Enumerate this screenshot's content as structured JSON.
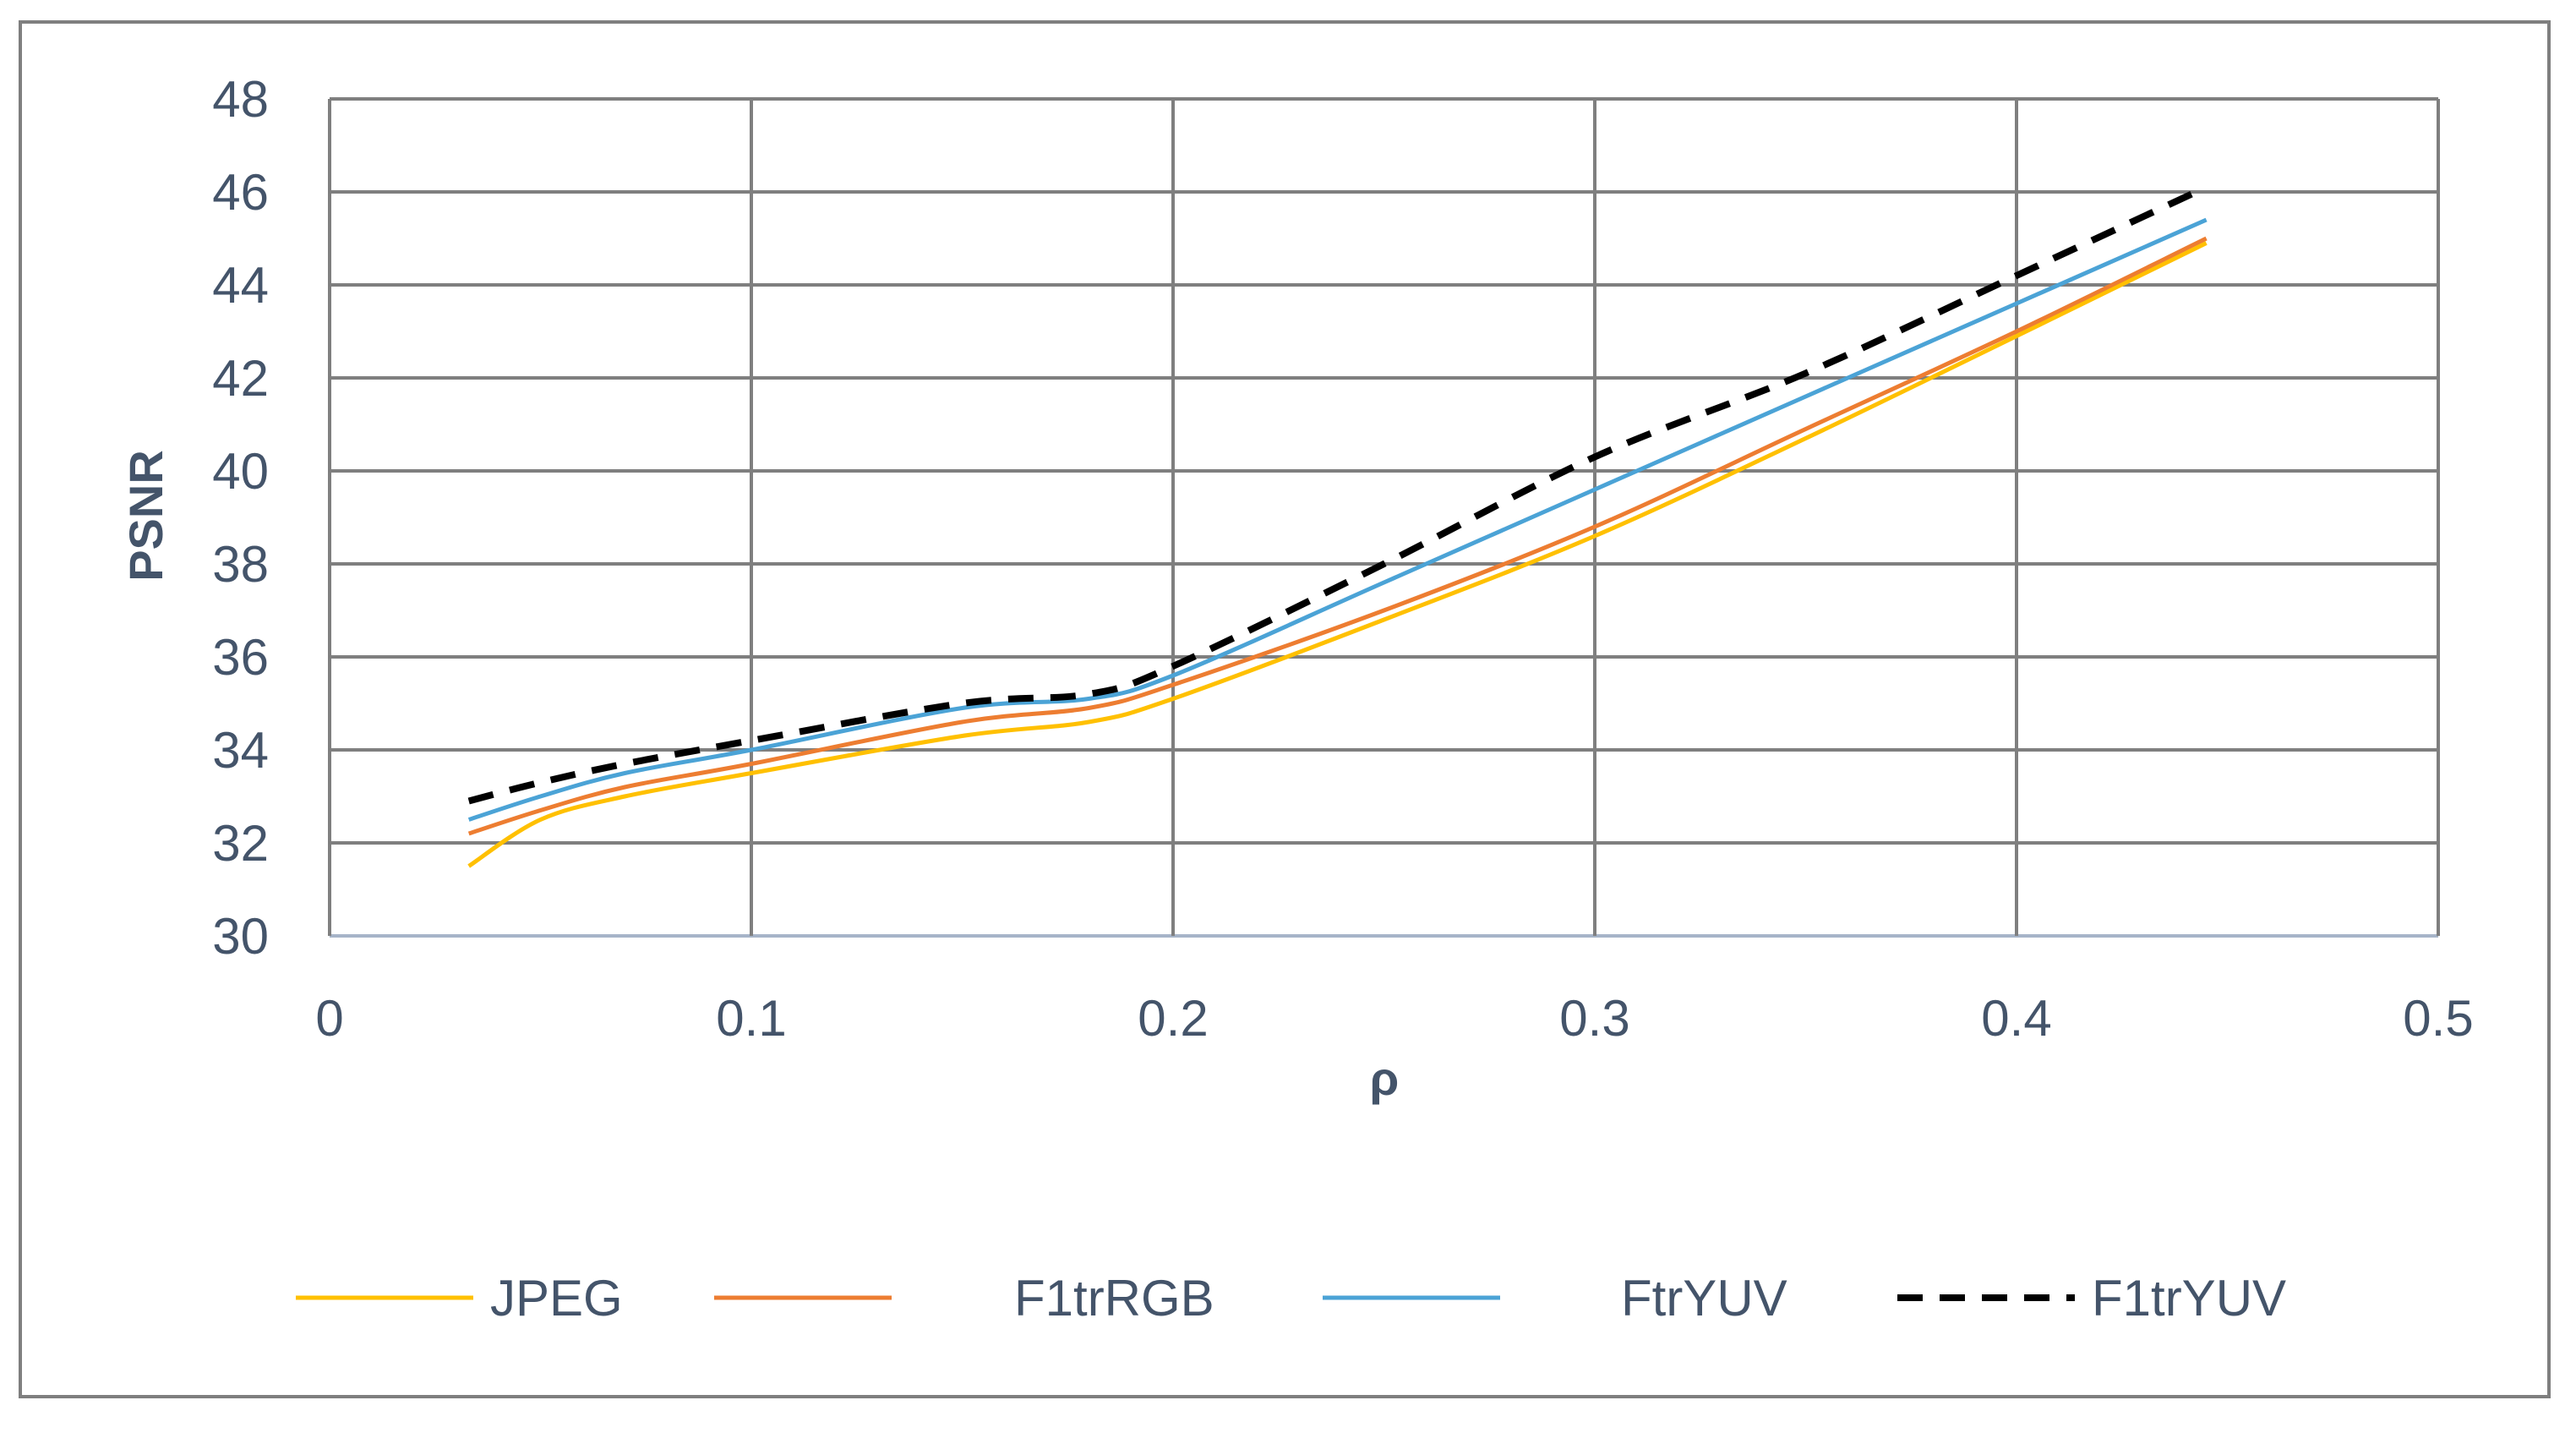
{
  "chart_data": {
    "type": "line",
    "title": "",
    "xlabel": "ρ",
    "ylabel": "PSNR",
    "xlim": [
      0,
      0.5
    ],
    "ylim": [
      30,
      48
    ],
    "x_ticks": [
      "0",
      "0.1",
      "0.2",
      "0.3",
      "0.4",
      "0.5"
    ],
    "y_ticks": [
      "30",
      "32",
      "34",
      "36",
      "38",
      "40",
      "42",
      "44",
      "46",
      "48"
    ],
    "grid": true,
    "legend_position": "bottom",
    "series": [
      {
        "name": "JPEG",
        "color": "#ffc000",
        "dash": false,
        "x": [
          0.033,
          0.05,
          0.07,
          0.1,
          0.15,
          0.18,
          0.2,
          0.25,
          0.3,
          0.35,
          0.4,
          0.445
        ],
        "y": [
          31.5,
          32.5,
          33.0,
          33.5,
          34.3,
          34.6,
          35.1,
          36.8,
          38.6,
          40.7,
          42.9,
          44.9
        ]
      },
      {
        "name": "F1trRGB",
        "color": "#ed7d31",
        "dash": false,
        "x": [
          0.033,
          0.05,
          0.07,
          0.1,
          0.15,
          0.18,
          0.2,
          0.25,
          0.3,
          0.35,
          0.4,
          0.445
        ],
        "y": [
          32.2,
          32.7,
          33.2,
          33.7,
          34.6,
          34.9,
          35.4,
          37.0,
          38.8,
          40.9,
          43.0,
          45.0
        ]
      },
      {
        "name": "FtrYUV",
        "color": "#4ba3d6",
        "dash": false,
        "x": [
          0.033,
          0.05,
          0.07,
          0.1,
          0.15,
          0.18,
          0.2,
          0.25,
          0.3,
          0.35,
          0.4,
          0.445
        ],
        "y": [
          32.5,
          33.0,
          33.5,
          34.0,
          34.9,
          35.1,
          35.6,
          37.6,
          39.6,
          41.6,
          43.6,
          45.4
        ]
      },
      {
        "name": "F1trYUV",
        "color": "#000000",
        "dash": true,
        "x": [
          0.033,
          0.05,
          0.07,
          0.1,
          0.15,
          0.18,
          0.2,
          0.25,
          0.3,
          0.35,
          0.4,
          0.445
        ],
        "y": [
          32.9,
          33.3,
          33.7,
          34.2,
          35.0,
          35.2,
          35.8,
          38.0,
          40.3,
          42.1,
          44.2,
          46.1
        ]
      }
    ]
  }
}
